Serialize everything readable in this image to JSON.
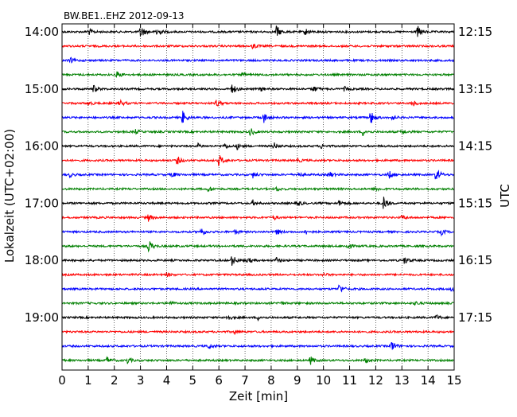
{
  "chart_data": {
    "type": "line",
    "title": "BW.BE1..EHZ 2012-09-13",
    "xlabel": "Zeit  [min]",
    "ylabel": "Lokalzeit (UTC+02:00)",
    "ylabel_right": "UTC",
    "xlim": [
      0,
      15
    ],
    "x_ticks": [
      0,
      1,
      2,
      3,
      4,
      5,
      6,
      7,
      8,
      9,
      10,
      11,
      12,
      13,
      14,
      15
    ],
    "x_tick_labels": [
      "0",
      "1",
      "2",
      "3",
      "4",
      "5",
      "6",
      "7",
      "8",
      "9",
      "10",
      "11",
      "12",
      "13",
      "14",
      "15"
    ],
    "grid": true,
    "trace_interval_min": 15,
    "trace_colors": [
      "#000000",
      "#ff0000",
      "#0000ff",
      "#008000"
    ],
    "y_ticks_left": [
      {
        "row": 0,
        "label": "14:00"
      },
      {
        "row": 4,
        "label": "15:00"
      },
      {
        "row": 8,
        "label": "16:00"
      },
      {
        "row": 12,
        "label": "17:00"
      },
      {
        "row": 16,
        "label": "18:00"
      },
      {
        "row": 20,
        "label": "19:00"
      }
    ],
    "y_ticks_right": [
      {
        "row": 0,
        "label": "12:15"
      },
      {
        "row": 4,
        "label": "13:15"
      },
      {
        "row": 8,
        "label": "14:15"
      },
      {
        "row": 12,
        "label": "15:15"
      },
      {
        "row": 16,
        "label": "16:15"
      },
      {
        "row": 20,
        "label": "17:15"
      }
    ],
    "series": [
      {
        "events": [
          [
            1.0,
            0.5
          ],
          [
            3.0,
            1.0
          ],
          [
            3.6,
            0.9
          ],
          [
            8.2,
            0.9
          ],
          [
            9.3,
            0.5
          ],
          [
            13.6,
            0.8
          ]
        ]
      },
      {
        "events": [
          [
            7.3,
            0.4
          ]
        ]
      },
      {
        "events": [
          [
            0.3,
            0.4
          ]
        ]
      },
      {
        "events": [
          [
            2.1,
            0.5
          ],
          [
            6.9,
            0.3
          ]
        ]
      },
      {
        "events": [
          [
            1.2,
            0.5
          ],
          [
            6.5,
            0.7
          ],
          [
            7.6,
            0.3
          ],
          [
            9.6,
            0.5
          ],
          [
            10.8,
            0.3
          ]
        ]
      },
      {
        "events": [
          [
            1.0,
            0.3
          ],
          [
            2.2,
            0.5
          ],
          [
            5.9,
            0.5
          ],
          [
            13.4,
            0.5
          ]
        ]
      },
      {
        "events": [
          [
            4.6,
            1.0
          ],
          [
            7.7,
            0.8
          ],
          [
            11.8,
            1.0
          ],
          [
            12.6,
            0.4
          ]
        ]
      },
      {
        "events": [
          [
            2.8,
            0.3
          ],
          [
            7.2,
            0.6
          ],
          [
            11.5,
            0.5
          ],
          [
            13.0,
            0.4
          ]
        ]
      },
      {
        "events": [
          [
            5.2,
            0.3
          ],
          [
            6.2,
            0.4
          ],
          [
            6.7,
            0.4
          ],
          [
            8.1,
            0.5
          ],
          [
            9.9,
            0.3
          ]
        ]
      },
      {
        "events": [
          [
            4.4,
            0.6
          ],
          [
            6.0,
            0.9
          ],
          [
            9.0,
            0.3
          ]
        ]
      },
      {
        "events": [
          [
            0.3,
            0.3
          ],
          [
            4.2,
            0.4
          ],
          [
            7.3,
            0.4
          ],
          [
            9.0,
            0.4
          ],
          [
            10.2,
            0.5
          ],
          [
            12.5,
            0.6
          ],
          [
            14.3,
            1.0
          ]
        ]
      },
      {
        "events": [
          [
            5.6,
            0.4
          ],
          [
            8.2,
            0.3
          ],
          [
            12.0,
            0.3
          ]
        ]
      },
      {
        "events": [
          [
            7.3,
            0.4
          ],
          [
            9.0,
            0.4
          ],
          [
            10.6,
            0.4
          ],
          [
            12.3,
            1.0
          ]
        ]
      },
      {
        "events": [
          [
            3.3,
            0.5
          ],
          [
            8.1,
            0.3
          ],
          [
            13.0,
            0.3
          ]
        ]
      },
      {
        "events": [
          [
            5.3,
            0.7
          ],
          [
            6.6,
            0.3
          ],
          [
            8.2,
            0.4
          ],
          [
            9.3,
            0.4
          ],
          [
            14.5,
            0.4
          ]
        ]
      },
      {
        "events": [
          [
            3.3,
            0.9
          ],
          [
            10.9,
            0.5
          ]
        ]
      },
      {
        "events": [
          [
            6.5,
            0.8
          ],
          [
            7.1,
            0.4
          ],
          [
            8.2,
            0.4
          ],
          [
            13.1,
            0.5
          ]
        ]
      },
      {
        "events": [
          [
            4.0,
            0.3
          ],
          [
            10.0,
            0.2
          ]
        ]
      },
      {
        "events": [
          [
            10.6,
            0.7
          ],
          [
            14.9,
            0.3
          ]
        ]
      },
      {
        "events": [
          [
            4.1,
            0.3
          ],
          [
            8.3,
            0.3
          ],
          [
            13.5,
            0.3
          ]
        ]
      },
      {
        "events": [
          [
            6.3,
            0.5
          ],
          [
            7.5,
            0.3
          ],
          [
            14.3,
            0.4
          ]
        ]
      },
      {
        "events": [
          [
            6.6,
            0.3
          ]
        ]
      },
      {
        "events": [
          [
            5.6,
            0.4
          ],
          [
            12.6,
            0.8
          ]
        ]
      },
      {
        "events": [
          [
            1.7,
            0.5
          ],
          [
            2.5,
            0.4
          ],
          [
            9.5,
            0.6
          ],
          [
            11.6,
            0.4
          ]
        ]
      }
    ]
  }
}
